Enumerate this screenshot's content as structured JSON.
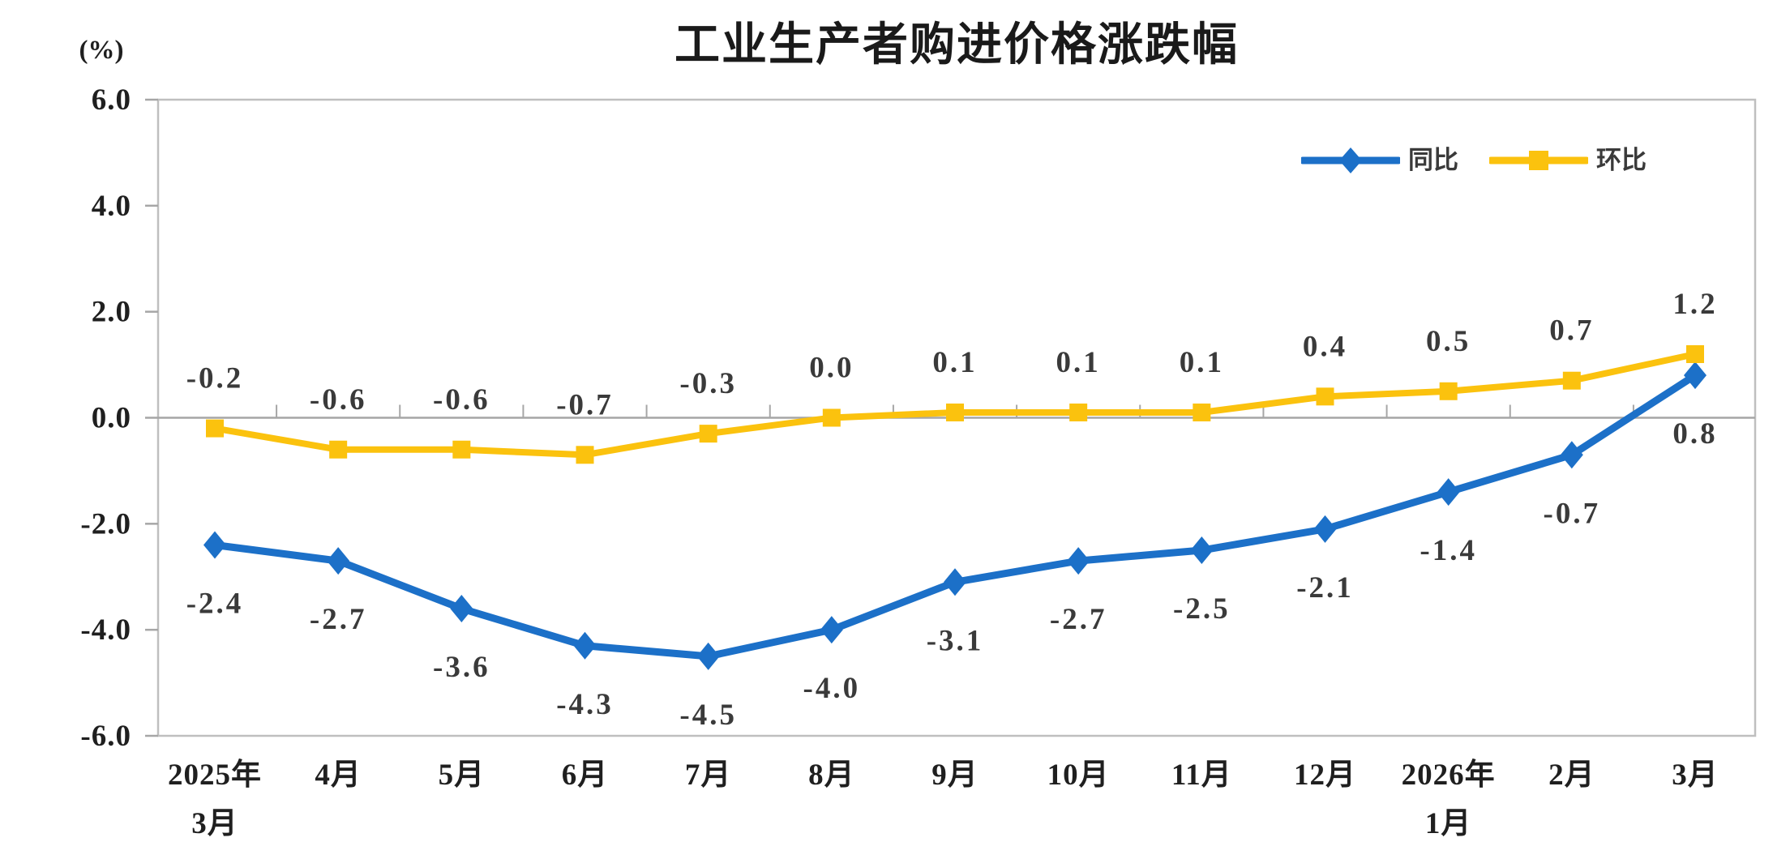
{
  "title": "工业生产者购进价格涨跌幅",
  "unit_label": "(%)",
  "chart_data": {
    "type": "line",
    "categories": [
      [
        "2025年",
        "3月"
      ],
      [
        "4月"
      ],
      [
        "5月"
      ],
      [
        "6月"
      ],
      [
        "7月"
      ],
      [
        "8月"
      ],
      [
        "9月"
      ],
      [
        "10月"
      ],
      [
        "11月"
      ],
      [
        "12月"
      ],
      [
        "2026年",
        "1月"
      ],
      [
        "2月"
      ],
      [
        "3月"
      ]
    ],
    "series": [
      {
        "name": "同比",
        "color": "#1C70C8",
        "marker": "diamond",
        "label_position": "below",
        "values": [
          -2.4,
          -2.7,
          -3.6,
          -4.3,
          -4.5,
          -4.0,
          -3.1,
          -2.7,
          -2.5,
          -2.1,
          -1.4,
          -0.7,
          0.8
        ],
        "labels": [
          "-2.4",
          "-2.7",
          "-3.6",
          "-4.3",
          "-4.5",
          "-4.0",
          "-3.1",
          "-2.7",
          "-2.5",
          "-2.1",
          "-1.4",
          "-0.7",
          "0.8"
        ]
      },
      {
        "name": "环比",
        "color": "#FBC20E",
        "marker": "square",
        "label_position": "above",
        "values": [
          -0.2,
          -0.6,
          -0.6,
          -0.7,
          -0.3,
          0.0,
          0.1,
          0.1,
          0.1,
          0.4,
          0.5,
          0.7,
          1.2
        ],
        "labels": [
          "-0.2",
          "-0.6",
          "-0.6",
          "-0.7",
          "-0.3",
          "0.0",
          "0.1",
          "0.1",
          "0.1",
          "0.4",
          "0.5",
          "0.7",
          "1.2"
        ]
      }
    ],
    "yaxis": {
      "ticks": [
        "6.0",
        "4.0",
        "2.0",
        "0.0",
        "-2.0",
        "-4.0",
        "-6.0"
      ],
      "min": -6.0,
      "max": 6.0
    },
    "xlabel": "",
    "ylabel": "(%)",
    "grid": "zero-line-only",
    "legend_position": "top-right-inside",
    "colors": {
      "frame": "#BFBFBF",
      "zero_line": "#A6A6A6",
      "tick": "#A6A6A6",
      "axis_text": "#1f1f1f",
      "data_label_text": "#3a3a3a"
    }
  }
}
